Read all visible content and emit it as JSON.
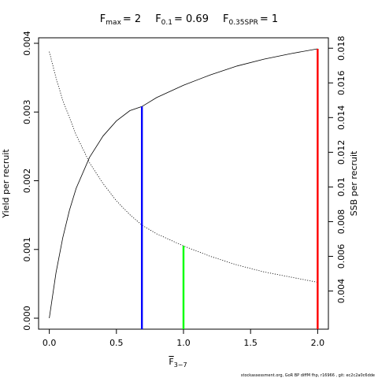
{
  "chart_data": {
    "type": "line",
    "title": {
      "fmax_label": "F",
      "fmax_sub": "max",
      "fmax_value": "= 2",
      "f01_label": "F",
      "f01_sub": "0.1",
      "f01_value": "= 0.69",
      "fspr_label": "F",
      "fspr_sub": "0.35SPR",
      "fspr_value": "= 1"
    },
    "xlabel": "F",
    "xlabel_sub": "3−7",
    "ylabel": "Yield per recruit",
    "y2label": "SSB per recruit",
    "xlim": [
      -0.08,
      2.08
    ],
    "ylim": [
      -0.00016,
      0.00408
    ],
    "y2lim": [
      0.0018,
      0.0186
    ],
    "x_ticks": [
      0,
      0.5,
      1,
      1.5,
      2
    ],
    "x_tick_labels": [
      "0.0",
      "0.5",
      "1.0",
      "1.5",
      "2.0"
    ],
    "y_ticks": [
      0,
      0.001,
      0.002,
      0.003,
      0.004
    ],
    "y_tick_labels": [
      "0.000",
      "0.001",
      "0.002",
      "0.003",
      "0.004"
    ],
    "y2_ticks": [
      0.004,
      0.006,
      0.008,
      0.01,
      0.012,
      0.014,
      0.016,
      0.018
    ],
    "y2_tick_labels": [
      "0.004",
      "0.006",
      "0.008",
      "0.01",
      "0.012",
      "0.014",
      "0.016",
      "0.018"
    ],
    "series": [
      {
        "style": "solid",
        "axis": "left",
        "x": [
          0,
          0.05,
          0.1,
          0.15,
          0.2,
          0.3,
          0.4,
          0.5,
          0.6,
          0.69,
          0.8,
          1.0,
          1.2,
          1.4,
          1.6,
          1.8,
          2.0
        ],
        "y": [
          0,
          0.00066,
          0.00117,
          0.00157,
          0.00189,
          0.00234,
          0.00265,
          0.00287,
          0.00302,
          0.00308,
          0.00321,
          0.00339,
          0.00354,
          0.00367,
          0.00377,
          0.00385,
          0.00392
        ]
      },
      {
        "style": "dotted",
        "axis": "right",
        "x": [
          0,
          0.05,
          0.1,
          0.2,
          0.3,
          0.4,
          0.5,
          0.6,
          0.69,
          0.8,
          1.0,
          1.2,
          1.4,
          1.6,
          1.8,
          2.0
        ],
        "y": [
          0.0178,
          0.0163,
          0.015,
          0.013,
          0.0114,
          0.0102,
          0.0092,
          0.0084,
          0.0078,
          0.0073,
          0.0066,
          0.006,
          0.0055,
          0.0051,
          0.0048,
          0.0045
        ]
      }
    ],
    "reference_lines": [
      {
        "name": "F0.1",
        "x": 0.69,
        "color": "#0000ff",
        "y_top": 0.00308,
        "axis": "left"
      },
      {
        "name": "F0.35SPR",
        "x": 1.0,
        "color": "#00ff00",
        "y_top": 0.0066,
        "axis": "right"
      },
      {
        "name": "Fmax",
        "x": 2.0,
        "color": "#ff0000",
        "y_top": 0.00392,
        "axis": "left"
      }
    ],
    "grid": false,
    "footnote": "stockassessment.org, GoR BP diffM fhp, r16966 , git: ec2c2a0c6dde"
  }
}
